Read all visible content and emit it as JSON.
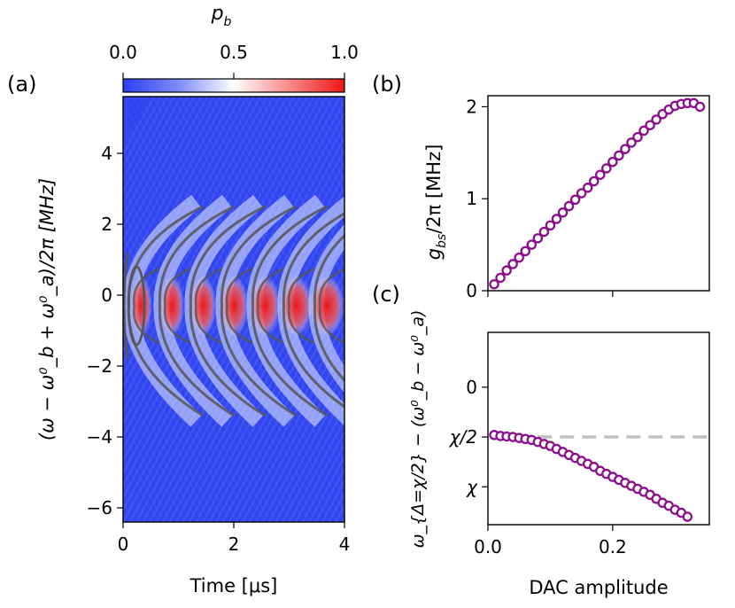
{
  "colors": {
    "low": "#2b3df2",
    "mid": "#ffffff",
    "high": "#f01515",
    "marker": "#8b0f8b",
    "dash": "#c0c0c0",
    "contour": "#555555"
  },
  "chart_data": [
    {
      "panel": "(a)",
      "type": "heatmap",
      "xlabel": "Time [μs]",
      "ylabel": "(ω − ω⁰_b + ω⁰_a)/2π [MHz]",
      "xlim": [
        0,
        4
      ],
      "ylim": [
        -6.4,
        5.6
      ],
      "xticks": [
        "0",
        "2",
        "4"
      ],
      "xtick_values": [
        0,
        2,
        4
      ],
      "yticks": [
        "−6",
        "−4",
        "−2",
        "0",
        "2",
        "4"
      ],
      "ytick_values": [
        -6,
        -4,
        -2,
        0,
        2,
        4
      ],
      "colorbar": {
        "label": "p_b",
        "label_main": "p",
        "label_sub": "b",
        "min": 0.0,
        "max": 1.0,
        "ticks": [
          "0.0",
          "0.5",
          "1.0"
        ],
        "tick_values": [
          0,
          0.5,
          1
        ]
      },
      "chevron_times": [
        0.2,
        0.76,
        1.32,
        1.88,
        2.44,
        3.0,
        3.56
      ],
      "contour_band": [
        -3.4,
        2.5
      ]
    },
    {
      "panel": "(b)",
      "type": "scatter",
      "xlabel": "",
      "ylabel": "g_bs/2π [MHz]",
      "ylabel_parts": [
        "g",
        "bs",
        "/2π [MHz]"
      ],
      "xlim": [
        0.0,
        0.355
      ],
      "ylim": [
        0,
        2.12
      ],
      "yticks": [
        "0",
        "1",
        "2"
      ],
      "ytick_values": [
        0,
        1,
        2
      ],
      "x": [
        0.01,
        0.02,
        0.03,
        0.04,
        0.05,
        0.06,
        0.07,
        0.08,
        0.09,
        0.1,
        0.11,
        0.12,
        0.13,
        0.14,
        0.15,
        0.16,
        0.17,
        0.18,
        0.19,
        0.2,
        0.21,
        0.22,
        0.23,
        0.24,
        0.25,
        0.26,
        0.27,
        0.28,
        0.29,
        0.3,
        0.31,
        0.32,
        0.33,
        0.34
      ],
      "y": [
        0.07,
        0.14,
        0.22,
        0.29,
        0.36,
        0.43,
        0.5,
        0.57,
        0.64,
        0.71,
        0.78,
        0.85,
        0.92,
        0.99,
        1.06,
        1.12,
        1.19,
        1.26,
        1.33,
        1.4,
        1.47,
        1.54,
        1.61,
        1.67,
        1.74,
        1.8,
        1.86,
        1.92,
        1.97,
        2.01,
        2.03,
        2.04,
        2.04,
        2.0
      ]
    },
    {
      "panel": "(c)",
      "type": "scatter",
      "xlabel": "DAC amplitude",
      "ylabel": "ω_{Δ=χ/2} − (ω⁰_b − ω⁰_a)",
      "xlim": [
        0.0,
        0.355
      ],
      "ylim": [
        -1.38,
        0.55
      ],
      "xticks": [
        "0.0",
        "0.2"
      ],
      "xtick_values": [
        0.0,
        0.2
      ],
      "yticks": [
        "0",
        "χ/2",
        "χ"
      ],
      "ytick_values": [
        0,
        -0.5,
        -1.0
      ],
      "hline": -0.5,
      "hline_xstart": 0.08,
      "x": [
        0.01,
        0.02,
        0.03,
        0.04,
        0.05,
        0.06,
        0.07,
        0.08,
        0.09,
        0.1,
        0.11,
        0.12,
        0.13,
        0.14,
        0.15,
        0.16,
        0.17,
        0.18,
        0.19,
        0.2,
        0.21,
        0.22,
        0.23,
        0.24,
        0.25,
        0.26,
        0.27,
        0.28,
        0.29,
        0.3,
        0.31,
        0.32
      ],
      "y": [
        -0.48,
        -0.49,
        -0.495,
        -0.5,
        -0.51,
        -0.52,
        -0.53,
        -0.55,
        -0.57,
        -0.59,
        -0.62,
        -0.65,
        -0.68,
        -0.71,
        -0.74,
        -0.77,
        -0.8,
        -0.84,
        -0.87,
        -0.9,
        -0.93,
        -0.96,
        -0.99,
        -1.02,
        -1.05,
        -1.08,
        -1.12,
        -1.16,
        -1.19,
        -1.23,
        -1.26,
        -1.3
      ]
    }
  ]
}
